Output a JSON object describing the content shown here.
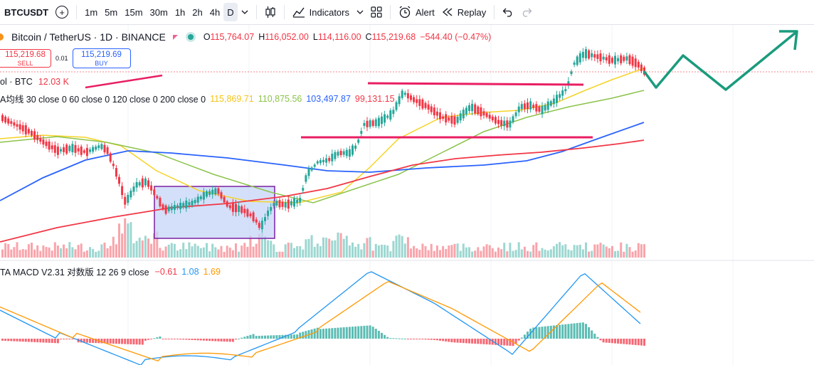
{
  "toolbar": {
    "symbol": "BTCUSDT",
    "add_icon": "plus-circle-icon",
    "timeframes": [
      "1m",
      "5m",
      "15m",
      "30m",
      "1h",
      "2h",
      "4h",
      "D"
    ],
    "active_timeframe": "D",
    "chart_type_icon": "candles-icon",
    "indicators_label": "Indicators",
    "layouts_icon": "grid-icon",
    "alert_label": "Alert",
    "replay_label": "Replay",
    "undo_icon": "undo-icon",
    "redo_icon": "redo-icon"
  },
  "legend": {
    "title": "Bitcoin / TetherUS · 1D · BINANCE",
    "o_label": "O",
    "o": "115,764.07",
    "h_label": "H",
    "h": "116,052.00",
    "l_label": "L",
    "l": "114,116.00",
    "c_label": "C",
    "c": "115,219.68",
    "change": "−544.40 (−0.47%)"
  },
  "trade": {
    "sell_price": "115,219.68",
    "sell_label": "SELL",
    "spread": "0.01",
    "buy_price": "115,219.69",
    "buy_label": "BUY"
  },
  "volume": {
    "label": "ol · BTC",
    "value": "12.03 K"
  },
  "ma": {
    "label": "A均线 30 close 0 60 close 0 120 close 0 200 close 0",
    "values": [
      "115,869.71",
      "110,875.56",
      "103,497.87",
      "99,131.15"
    ],
    "colors": [
      "#f5d327",
      "#8bc34a",
      "#2962ff",
      "#f23645"
    ]
  },
  "macd": {
    "label": "TA MACD V2.31 对数版 12 26 9 close",
    "values": [
      "−0.61",
      "1.08",
      "1.69"
    ],
    "colors": [
      "#f23645",
      "#2196f3",
      "#ff9800"
    ]
  },
  "colors": {
    "up": "#26a69a",
    "down": "#f23645",
    "drawing": "#e91e63",
    "box_fill": "#c5d5f7",
    "box_border": "#7b1fa2",
    "arrow": "#1a9b7d"
  }
}
